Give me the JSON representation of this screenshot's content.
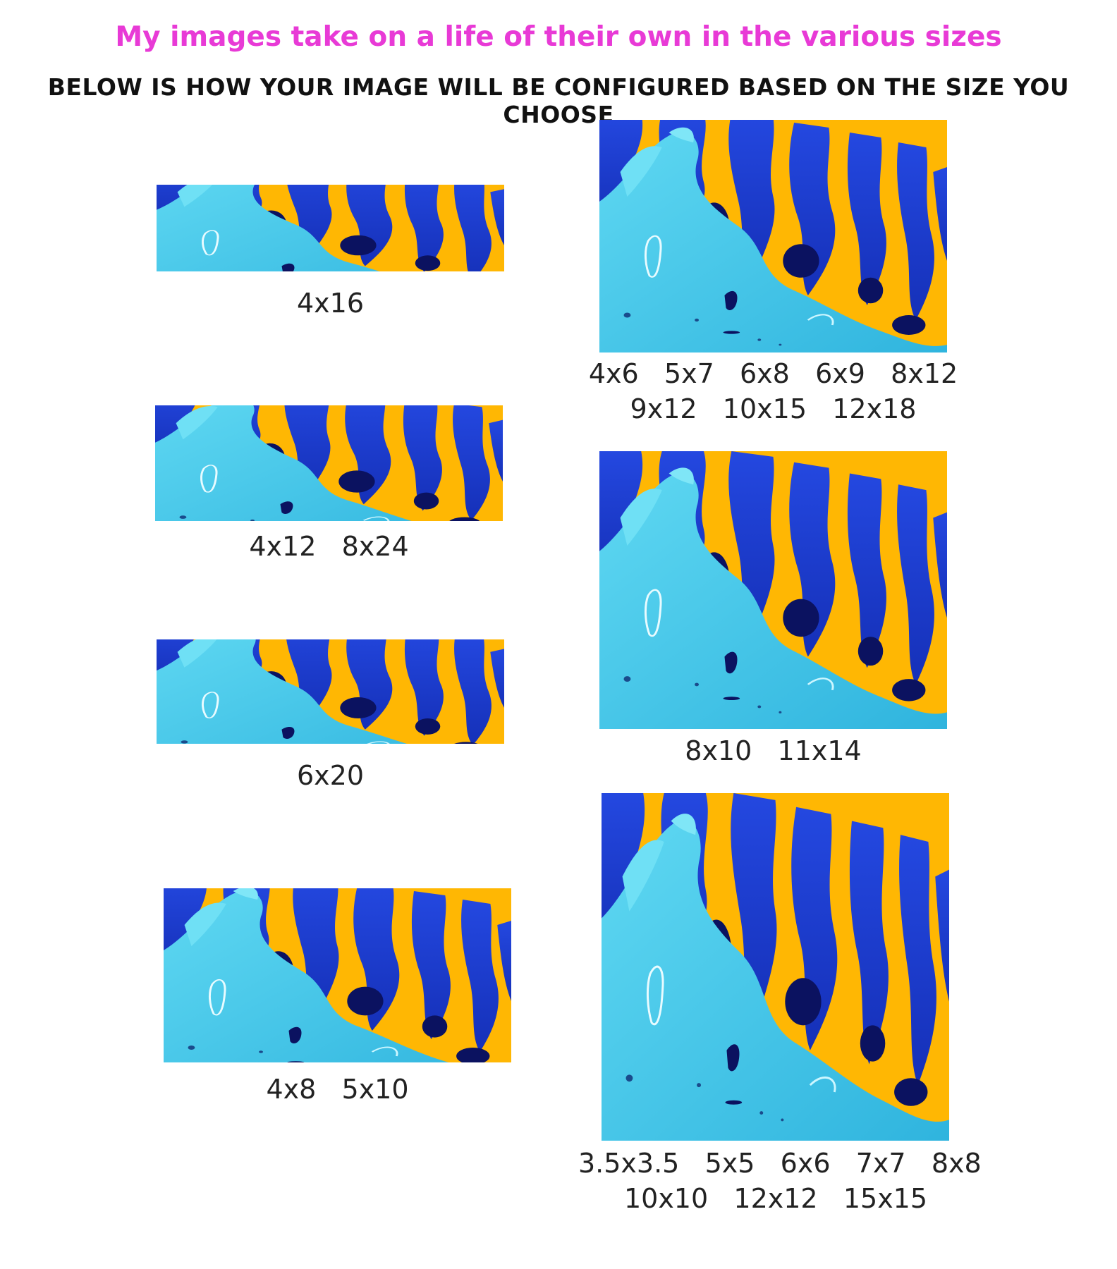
{
  "headline": "My images take on a life of their own in the various sizes",
  "subheadline": "BELOW IS HOW YOUR IMAGE WILL BE CONFIGURED BASED ON THE SIZE YOU CHOOSE",
  "colors": {
    "headline": "#e83ad6",
    "background_yellow": "#ffb703",
    "paint_cyan": "#3ec4e6",
    "paint_blue": "#1a3ad6",
    "paint_dark": "#0b1260"
  },
  "previews": [
    {
      "id": "4x16",
      "caption_lines": [
        "4x16"
      ]
    },
    {
      "id": "4x12",
      "caption_lines": [
        "4x12   8x24"
      ]
    },
    {
      "id": "6x20",
      "caption_lines": [
        "6x20"
      ]
    },
    {
      "id": "4x8",
      "caption_lines": [
        "4x8   5x10"
      ]
    },
    {
      "id": "4x6",
      "caption_lines": [
        "4x6   5x7   6x8   6x9   8x12",
        "9x12   10x15   12x18"
      ]
    },
    {
      "id": "8x10",
      "caption_lines": [
        "8x10   11x14"
      ]
    },
    {
      "id": "square",
      "caption_lines": [
        "3.5x3.5   5x5   6x6   7x7   8x8",
        "10x10   12x12   15x15"
      ]
    }
  ]
}
